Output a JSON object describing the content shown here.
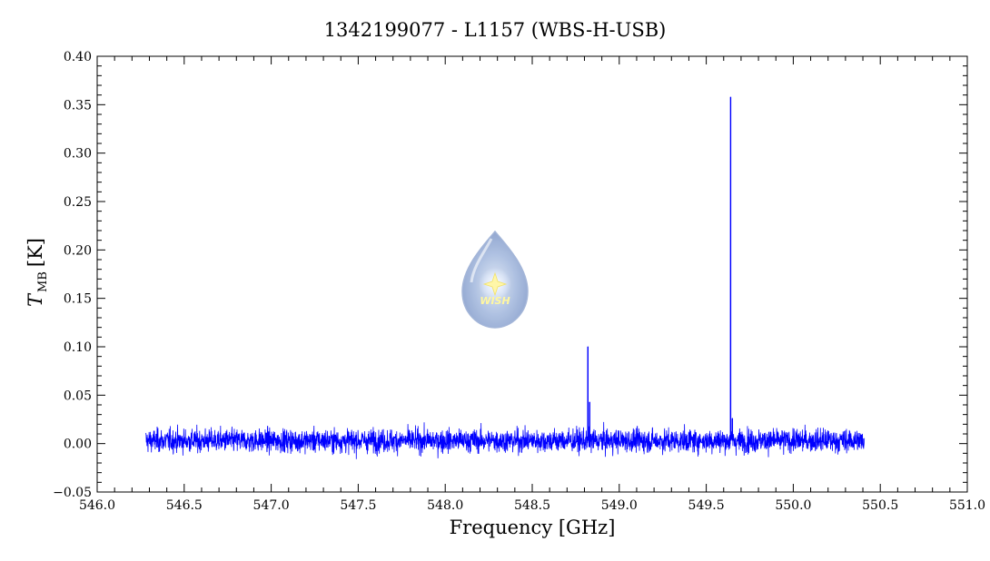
{
  "chart_data": {
    "type": "line",
    "title": "1342199077 - L1157 (WBS-H-USB)",
    "xlabel": "Frequency [GHz]",
    "ylabel_main": "T",
    "ylabel_sub": "MB",
    "ylabel_unit": "[K]",
    "xlim": [
      546.0,
      551.0
    ],
    "ylim": [
      -0.05,
      0.4
    ],
    "x_ticks": [
      "546.0",
      "546.5",
      "547.0",
      "547.5",
      "548.0",
      "548.5",
      "549.0",
      "549.5",
      "550.0",
      "550.5",
      "551.0"
    ],
    "y_ticks": [
      "−0.05",
      "0.00",
      "0.05",
      "0.10",
      "0.15",
      "0.20",
      "0.25",
      "0.30",
      "0.35",
      "0.40"
    ],
    "grid": false,
    "series": [
      {
        "color": "#0000ff",
        "x_start": 546.28,
        "x_end": 550.41,
        "baseline": 0.003,
        "noise_rms": 0.006,
        "peaks": [
          {
            "x": 548.82,
            "y": 0.1
          },
          {
            "x": 548.83,
            "y": 0.043
          },
          {
            "x": 549.64,
            "y": 0.358
          },
          {
            "x": 549.65,
            "y": 0.026
          }
        ]
      }
    ]
  },
  "logo": {
    "text": "WISH",
    "icon": "water-drop-star-icon"
  }
}
